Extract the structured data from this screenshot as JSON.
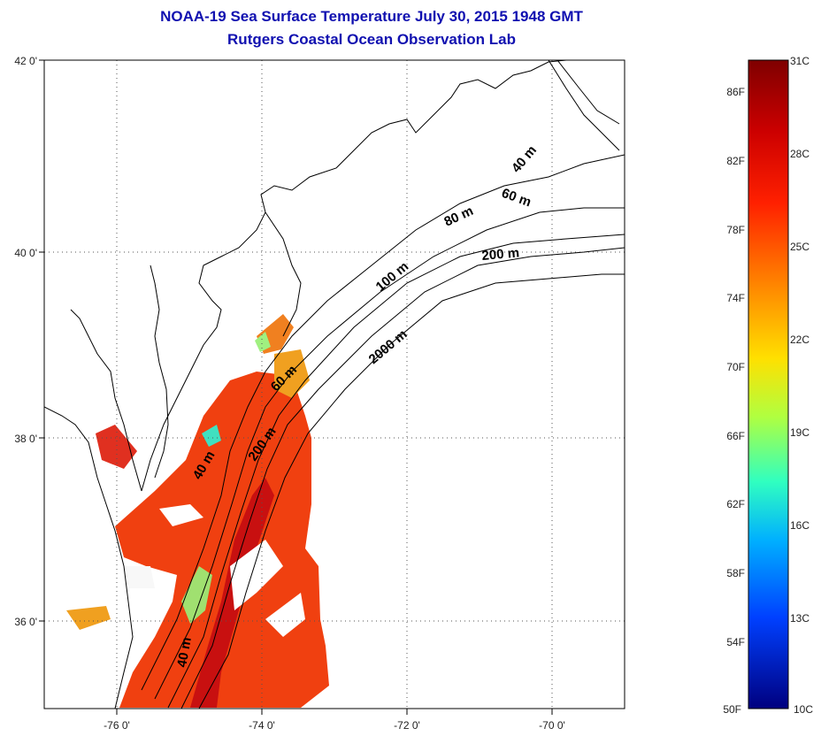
{
  "titles": {
    "line1": "NOAA-19 Sea Surface Temperature July 30, 2015 1948 GMT",
    "line2": "Rutgers Coastal Ocean Observation Lab"
  },
  "map": {
    "lat_range": [
      35,
      42
    ],
    "lon_range": [
      -77,
      -69
    ],
    "lat_ticks": [
      "42 0'",
      "40 0'",
      "38 0'",
      "36 0'"
    ],
    "lon_ticks": [
      "-76 0'",
      "-74 0'",
      "-72 0'",
      "-70 0'"
    ],
    "grid": "dotted",
    "isobath_labels": [
      "40 m",
      "60 m",
      "80 m",
      "200 m",
      "100 m",
      "2000 m",
      "60 m",
      "40 m",
      "200 m",
      "40 m"
    ]
  },
  "colorbar": {
    "colormap": "jet",
    "celsius": [
      "31C",
      "28C",
      "25C",
      "22C",
      "19C",
      "16C",
      "13C",
      "10C"
    ],
    "fahrenheit": [
      "86F",
      "82F",
      "78F",
      "74F",
      "70F",
      "66F",
      "62F",
      "58F",
      "54F",
      "50F"
    ],
    "colors": [
      "#7f0000",
      "#ff0000",
      "#ff8000",
      "#ffff00",
      "#80ff80",
      "#00ffff",
      "#0080ff",
      "#0000ff",
      "#00007f"
    ]
  }
}
